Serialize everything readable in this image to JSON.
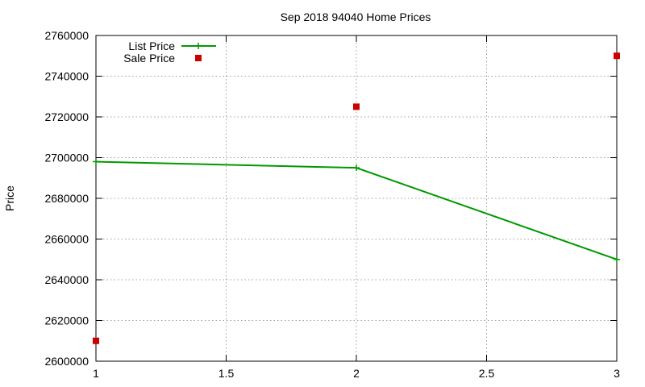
{
  "chart_data": {
    "type": "line",
    "title": "Sep 2018 94040 Home Prices",
    "xlabel": "",
    "ylabel": "Price",
    "xlim": [
      1,
      3
    ],
    "ylim": [
      2600000,
      2760000
    ],
    "x_ticks": [
      1,
      1.5,
      2,
      2.5,
      3
    ],
    "x_tick_labels": [
      "1",
      "1.5",
      "2",
      "2.5",
      "3"
    ],
    "y_ticks": [
      2600000,
      2620000,
      2640000,
      2660000,
      2680000,
      2700000,
      2720000,
      2740000,
      2760000
    ],
    "y_tick_labels": [
      "2600000",
      "2620000",
      "2640000",
      "2660000",
      "2680000",
      "2700000",
      "2720000",
      "2740000",
      "2760000"
    ],
    "grid": true,
    "legend_position": "top-left",
    "series": [
      {
        "name": "List Price",
        "style": "line-points",
        "color": "#009900",
        "x": [
          1,
          2,
          3
        ],
        "values": [
          2698000,
          2695000,
          2650000
        ]
      },
      {
        "name": "Sale Price",
        "style": "points",
        "color": "#cc0000",
        "x": [
          1,
          2,
          3
        ],
        "values": [
          2610000,
          2725000,
          2750000
        ]
      }
    ]
  }
}
